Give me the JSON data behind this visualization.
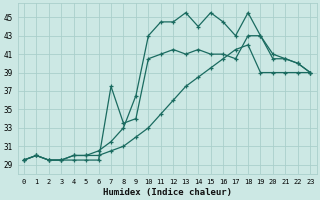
{
  "title": "",
  "xlabel": "Humidex (Indice chaleur)",
  "bg_color": "#cce8e4",
  "grid_color": "#aacfcb",
  "line_color": "#1a6b60",
  "xlim": [
    -0.5,
    23.5
  ],
  "ylim": [
    28.0,
    46.5
  ],
  "xticks": [
    0,
    1,
    2,
    3,
    4,
    5,
    6,
    7,
    8,
    9,
    10,
    11,
    12,
    13,
    14,
    15,
    16,
    17,
    18,
    19,
    20,
    21,
    22,
    23
  ],
  "yticks": [
    29,
    31,
    33,
    35,
    37,
    39,
    41,
    43,
    45
  ],
  "series_top_x": [
    0,
    1,
    2,
    3,
    4,
    5,
    6,
    7,
    8,
    9,
    10,
    11,
    12,
    13,
    14,
    15,
    16,
    17,
    18,
    19,
    20,
    21,
    22,
    23
  ],
  "series_top_y": [
    29.5,
    30.0,
    29.5,
    29.5,
    30.0,
    30.0,
    30.5,
    31.5,
    33.0,
    36.5,
    43.0,
    44.5,
    44.5,
    45.5,
    44.0,
    45.5,
    44.5,
    43.0,
    45.5,
    43.0,
    40.5,
    40.5,
    40.0,
    39.0
  ],
  "series_mid_x": [
    0,
    1,
    2,
    3,
    4,
    5,
    6,
    7,
    8,
    9,
    10,
    11,
    12,
    13,
    14,
    15,
    16,
    17,
    18,
    19,
    20,
    21,
    22,
    23
  ],
  "series_mid_y": [
    29.5,
    30.0,
    29.5,
    29.5,
    29.5,
    29.5,
    29.5,
    37.5,
    33.5,
    34.0,
    40.5,
    41.0,
    41.5,
    41.0,
    41.5,
    41.0,
    41.0,
    40.5,
    43.0,
    43.0,
    41.0,
    40.5,
    40.0,
    39.0
  ],
  "series_low_x": [
    0,
    1,
    2,
    3,
    4,
    5,
    6,
    7,
    8,
    9,
    10,
    11,
    12,
    13,
    14,
    15,
    16,
    17,
    18,
    19,
    20,
    21,
    22,
    23
  ],
  "series_low_y": [
    29.5,
    30.0,
    29.5,
    29.5,
    30.0,
    30.0,
    30.0,
    30.5,
    31.0,
    32.0,
    33.0,
    34.5,
    36.0,
    37.5,
    38.5,
    39.5,
    40.5,
    41.5,
    42.0,
    39.0,
    39.0,
    39.0,
    39.0,
    39.0
  ]
}
